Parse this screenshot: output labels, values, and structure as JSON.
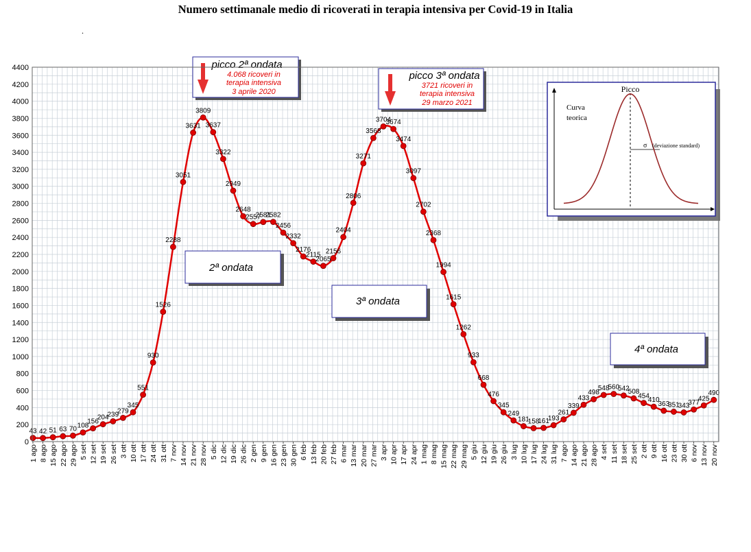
{
  "chart_data": {
    "type": "line",
    "title": "Numero settimanale medio di ricoverati in terapia intensiva per Covid-19 in Italia",
    "ylim": [
      0,
      4400
    ],
    "yticks": [
      0,
      200,
      400,
      600,
      800,
      1000,
      1200,
      1400,
      1600,
      1800,
      2000,
      2200,
      2400,
      2600,
      2800,
      3000,
      3200,
      3400,
      3600,
      3800,
      4000,
      4200,
      4400
    ],
    "grid": true,
    "categories": [
      "1 ago",
      "8 ago",
      "15 ago",
      "22 ago",
      "29 ago",
      "5 set",
      "12 set",
      "19 set",
      "26 set",
      "3 ott",
      "10 ott",
      "17 ott",
      "24 ott",
      "31 ott",
      "7 nov",
      "14 nov",
      "21 nov",
      "28 nov",
      "5 dic",
      "12 dic",
      "19 dic",
      "26 dic",
      "2 gen",
      "9 gen",
      "16 gen",
      "23 gen",
      "30 gen",
      "6 feb",
      "13 feb",
      "20 feb",
      "27 feb",
      "6 mar",
      "13 mar",
      "20 mar",
      "27 mar",
      "3 apr",
      "10 apr",
      "17 apr",
      "24 apr",
      "1 mag",
      "8 mag",
      "15 mag",
      "22 mag",
      "29 mag",
      "5 giu",
      "12 giu",
      "19 giu",
      "26 giu",
      "3 lug",
      "10 lug",
      "17 lug",
      "24 lug",
      "31 lug",
      "7 ago",
      "14 ago",
      "21 ago",
      "28 ago",
      "4 set",
      "11 set",
      "18 set",
      "25 set",
      "2 ott",
      "9 ott",
      "16 ott",
      "23 ott",
      "30 ott",
      "6 nov",
      "13 nov",
      "20 nov"
    ],
    "values": [
      43,
      42,
      51,
      63,
      70,
      108,
      156,
      204,
      239,
      279,
      345,
      551,
      930,
      1526,
      2288,
      3051,
      3631,
      3809,
      3637,
      3322,
      2949,
      2648,
      2557,
      2581,
      2582,
      2456,
      2332,
      2176,
      2115,
      2065,
      2156,
      2404,
      2806,
      3271,
      3568,
      3704,
      3674,
      3474,
      3097,
      2702,
      2368,
      1994,
      1615,
      1262,
      933,
      668,
      476,
      345,
      249,
      181,
      158,
      161,
      193,
      261,
      339,
      433,
      498,
      548,
      560,
      542,
      508,
      454,
      410,
      363,
      351,
      343,
      377,
      425,
      490
    ],
    "data_labels": [
      "43",
      "42",
      "51",
      "63",
      "70",
      "108",
      "156",
      "204",
      "239",
      "279",
      "345",
      "551",
      "930",
      "1526",
      "2288",
      "3051",
      "3631",
      "3809",
      "3637",
      "3322",
      "2949",
      "2648",
      "2557",
      "2581",
      "2582",
      "2456",
      "2332",
      "2176",
      "2115",
      "2065",
      "2156",
      "2404",
      "2806",
      "3271",
      "3568",
      "3704",
      "3674",
      "3474",
      "3097",
      "2702",
      "2368",
      "1994",
      "1615",
      "1262",
      "933",
      "668",
      "476",
      "345",
      "249",
      "181",
      "158",
      "161",
      "193",
      "261",
      "339",
      "433",
      "498",
      "548",
      "560",
      "542",
      "508",
      "454",
      "410",
      "363",
      "351",
      "343",
      "377",
      "425",
      "490"
    ],
    "line_color": "#e00000",
    "marker_color": "#e00000"
  },
  "page": {
    "title": "Numero settimanale medio di ricoverati in terapia intensiva per Covid-19 in Italia",
    "stray_mark": "."
  },
  "annotations": {
    "peak2": {
      "title": "picco 2ª ondata",
      "line1": "4.068 ricoveri in",
      "line2": "terapia intensiva",
      "line3": "3 aprile 2020"
    },
    "peak3": {
      "title": "picco 3ª ondata",
      "line1": "3721 ricoveri in",
      "line2": "terapia intensiva",
      "line3": "29 marzo 2021"
    },
    "wave2": "2ª ondata",
    "wave3": "3ª ondata",
    "wave4": "4ª ondata",
    "arrow_color": "#e53030"
  },
  "inset": {
    "title": "Picco",
    "curve_label_1": "Curva",
    "curve_label_2": "teorica",
    "sigma_label": "σ",
    "sigma_note": "(deviazione standard)",
    "curve_color": "#9b2a2a",
    "title_color": "#9b2a2a"
  }
}
